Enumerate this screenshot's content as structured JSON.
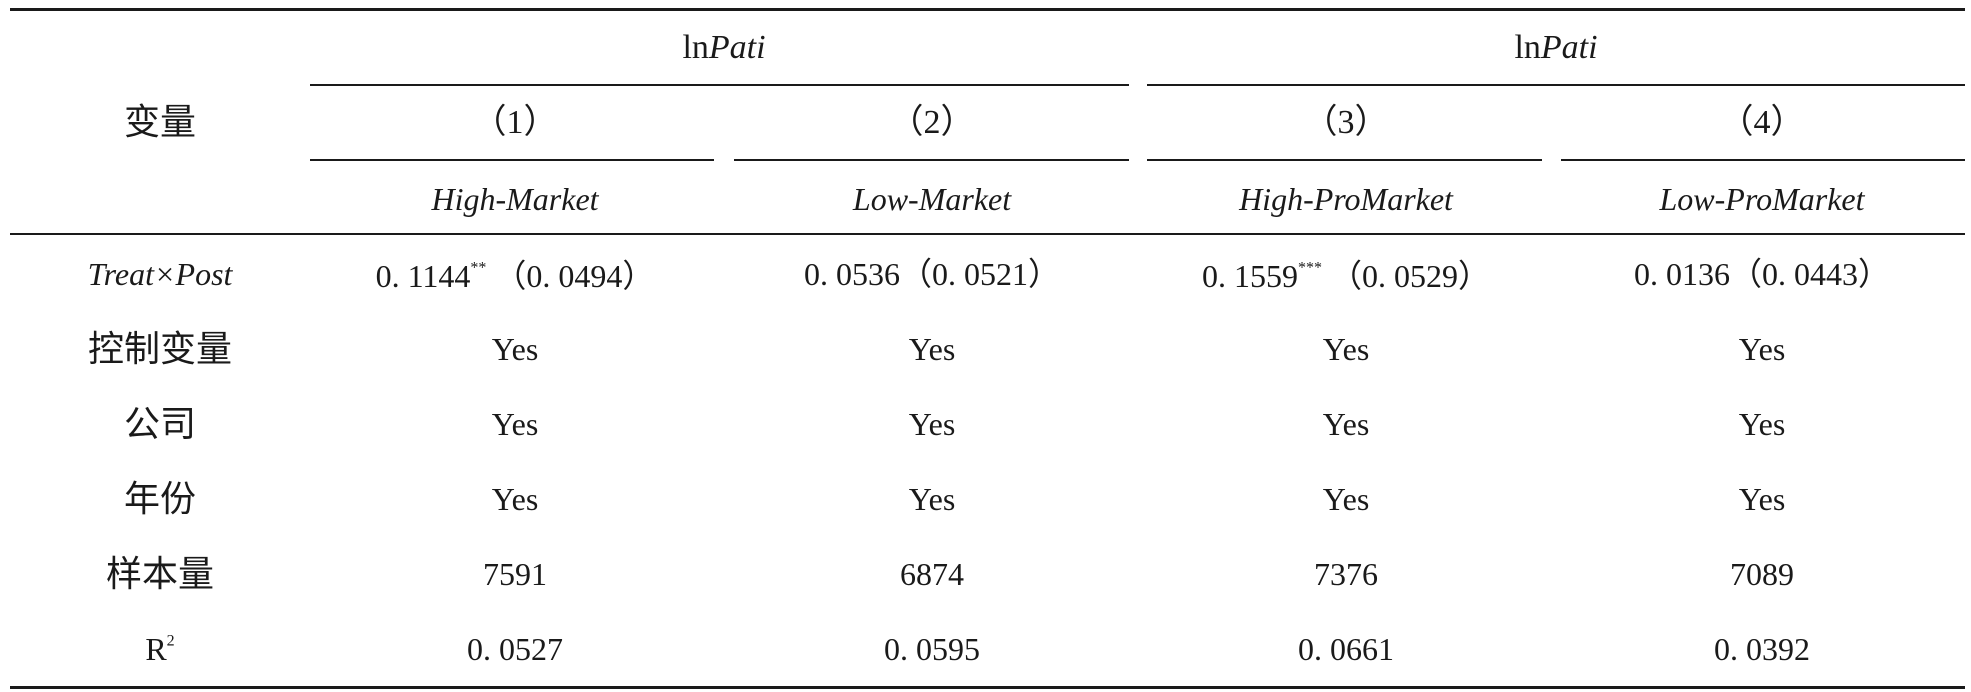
{
  "table": {
    "variable_header": "变量",
    "group_headers": [
      {
        "prefix": "ln",
        "italic": "Pati"
      },
      {
        "prefix": "ln",
        "italic": "Pati"
      }
    ],
    "column_numbers": [
      "（1）",
      "（2）",
      "（3）",
      "（4）"
    ],
    "column_groups": [
      "High-Market",
      "Low-Market",
      "High-ProMarket",
      "Low-ProMarket"
    ],
    "rows": [
      {
        "label": "Treat×Post",
        "label_italic": true,
        "cells": [
          {
            "coef": "0. 1144",
            "stars": "**",
            "se": "（0. 0494）"
          },
          {
            "coef": "0. 0536",
            "stars": "",
            "se": "（0. 0521）"
          },
          {
            "coef": "0. 1559",
            "stars": "***",
            "se": "（0. 0529）"
          },
          {
            "coef": "0. 0136",
            "stars": "",
            "se": "（0. 0443）"
          }
        ]
      },
      {
        "label": "控制变量",
        "label_italic": false,
        "cells": [
          "Yes",
          "Yes",
          "Yes",
          "Yes"
        ]
      },
      {
        "label": "公司",
        "label_italic": false,
        "cells": [
          "Yes",
          "Yes",
          "Yes",
          "Yes"
        ]
      },
      {
        "label": "年份",
        "label_italic": false,
        "cells": [
          "Yes",
          "Yes",
          "Yes",
          "Yes"
        ]
      },
      {
        "label": "样本量",
        "label_italic": false,
        "cells": [
          "7591",
          "6874",
          "7376",
          "7089"
        ]
      },
      {
        "label": "R",
        "label_sup": "2",
        "label_italic": false,
        "cells": [
          "0. 0527",
          "0. 0595",
          "0. 0661",
          "0. 0392"
        ]
      }
    ]
  }
}
